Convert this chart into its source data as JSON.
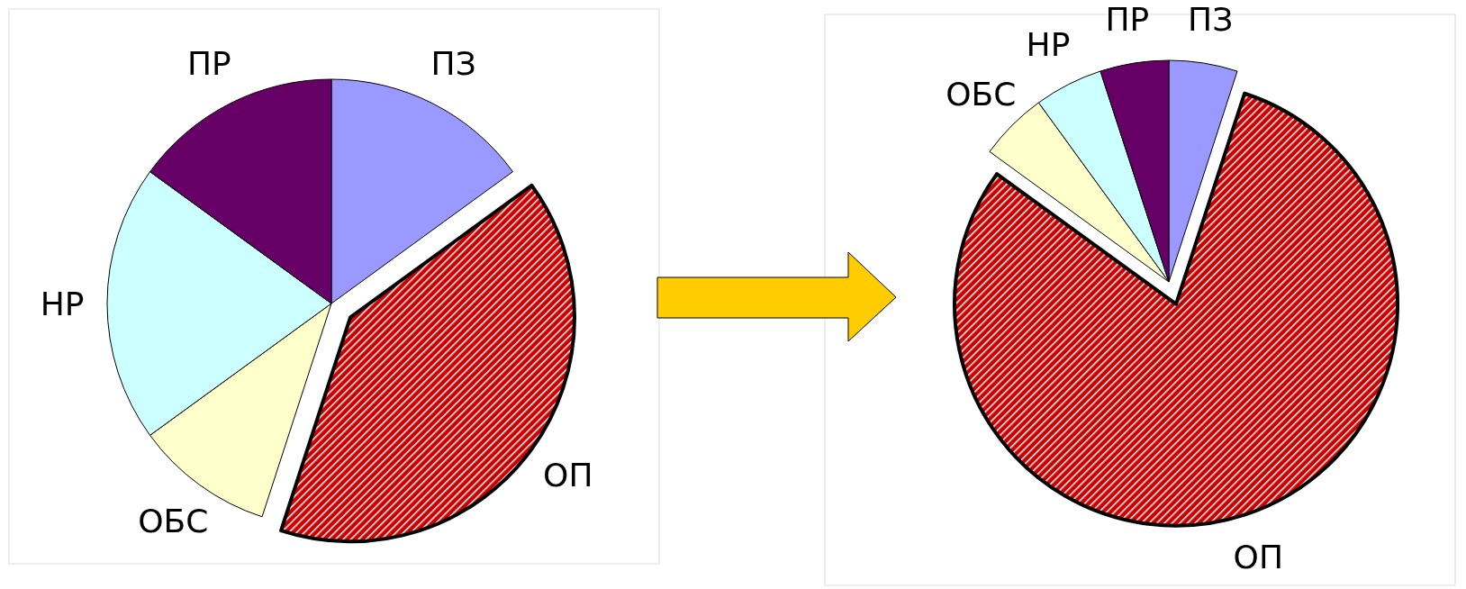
{
  "chart_data": [
    {
      "type": "pie",
      "categories": [
        "ПЗ",
        "ОП",
        "ОБС",
        "НР",
        "ПР"
      ],
      "values": [
        15,
        40,
        10,
        20,
        15
      ],
      "colors": [
        "#9999ff",
        "#cc0000",
        "#ffffcc",
        "#ccffff",
        "#660066"
      ]
    },
    {
      "type": "pie",
      "categories": [
        "ПЗ",
        "ОП",
        "ОБС",
        "НР",
        "ПР"
      ],
      "values": [
        5,
        80,
        5,
        5,
        5
      ],
      "colors": [
        "#9999ff",
        "#cc0000",
        "#ffffcc",
        "#ccffff",
        "#660066"
      ]
    }
  ]
}
